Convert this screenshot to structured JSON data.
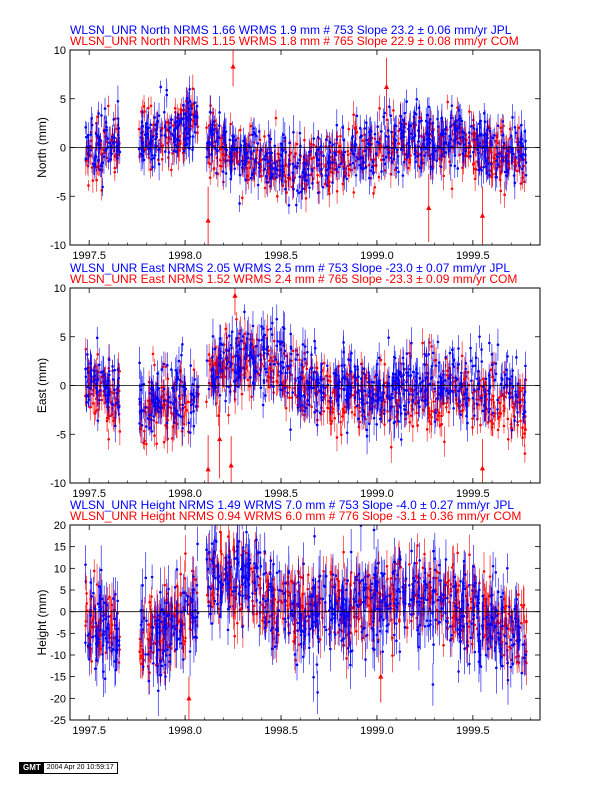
{
  "chart_data": [
    {
      "type": "scatter",
      "id": "north",
      "title_lines": [
        {
          "text": "WLSN_UNR North NRMS 1.66 WRMS  1.9 mm # 753 Slope   23.2 ±  0.06 mm/yr JPL",
          "color": "#0000ff"
        },
        {
          "text": "WLSN_UNR North NRMS 1.15 WRMS  1.8 mm # 765 Slope   22.9 ±  0.08 mm/yr COM",
          "color": "#ff0000"
        }
      ],
      "ylabel": "North (mm)",
      "xlim": [
        1997.4,
        1999.85
      ],
      "ylim": [
        -10,
        10
      ],
      "xticks": [
        1997.5,
        1998.0,
        1998.5,
        1999.0,
        1999.5
      ],
      "xtick_labels": [
        "1997.5",
        "1998.0",
        "1998.5",
        "1999.0",
        "1999.5"
      ],
      "yticks": [
        -10,
        -5,
        0,
        5,
        10
      ],
      "ytick_labels": [
        "-10",
        "-5",
        "0",
        "5",
        "10"
      ],
      "series": [
        {
          "color": "#ff0000",
          "count": 765,
          "trend": [
            [
              1997.48,
              -0.5
            ],
            [
              1997.6,
              -0.3
            ],
            [
              1997.75,
              0.5
            ],
            [
              1997.95,
              1.5
            ],
            [
              1998.05,
              2.5
            ],
            [
              1998.15,
              0.5
            ],
            [
              1998.3,
              -1.0
            ],
            [
              1998.5,
              -2.0
            ],
            [
              1998.65,
              -2.3
            ],
            [
              1998.8,
              -1.5
            ],
            [
              1998.95,
              0.0
            ],
            [
              1999.2,
              0.6
            ],
            [
              1999.4,
              0.5
            ],
            [
              1999.6,
              -0.8
            ],
            [
              1999.78,
              -1.2
            ]
          ],
          "scatter": 1.5,
          "error": 1.0,
          "point_size": 2.5
        },
        {
          "color": "#0000ff",
          "count": 753,
          "trend": [
            [
              1997.48,
              -0.3
            ],
            [
              1997.6,
              0.0
            ],
            [
              1997.75,
              0.8
            ],
            [
              1997.95,
              1.8
            ],
            [
              1998.05,
              3.0
            ],
            [
              1998.15,
              0.8
            ],
            [
              1998.3,
              -0.8
            ],
            [
              1998.5,
              -1.8
            ],
            [
              1998.65,
              -2.0
            ],
            [
              1998.8,
              -1.0
            ],
            [
              1998.95,
              0.5
            ],
            [
              1999.2,
              1.2
            ],
            [
              1999.4,
              1.0
            ],
            [
              1999.6,
              -0.3
            ],
            [
              1999.78,
              -0.8
            ]
          ],
          "scatter": 1.6,
          "error": 1.2,
          "point_size": 2.5
        }
      ],
      "outliers": [
        {
          "x": 1998.12,
          "y": -7.5,
          "err": 3.5
        },
        {
          "x": 1998.25,
          "y": 8.3,
          "err": 2.0
        },
        {
          "x": 1999.05,
          "y": 6.2,
          "err": 3.0
        },
        {
          "x": 1999.27,
          "y": -6.2,
          "err": 3.5
        },
        {
          "x": 1999.55,
          "y": -7.0,
          "err": 3.0
        }
      ],
      "gaps": [
        [
          1997.66,
          1997.76
        ],
        [
          1998.07,
          1998.11
        ]
      ]
    },
    {
      "type": "scatter",
      "id": "east",
      "title_lines": [
        {
          "text": "WLSN_UNR East NRMS 2.05 WRMS  2.5 mm # 753 Slope  -23.0 ±  0.07 mm/yr JPL",
          "color": "#0000ff"
        },
        {
          "text": "WLSN_UNR East NRMS 1.52 WRMS  2.4 mm # 765 Slope  -23.3 ±  0.09 mm/yr COM",
          "color": "#ff0000"
        }
      ],
      "ylabel": "East (mm)",
      "xlim": [
        1997.4,
        1999.85
      ],
      "ylim": [
        -10,
        10
      ],
      "xticks": [
        1997.5,
        1998.0,
        1998.5,
        1999.0,
        1999.5
      ],
      "xtick_labels": [
        "1997.5",
        "1998.0",
        "1998.5",
        "1999.0",
        "1999.5"
      ],
      "yticks": [
        -10,
        -5,
        0,
        5,
        10
      ],
      "ytick_labels": [
        "-10",
        "-5",
        "0",
        "5",
        "10"
      ],
      "series": [
        {
          "color": "#ff0000",
          "count": 765,
          "trend": [
            [
              1997.48,
              0.3
            ],
            [
              1997.6,
              -1.0
            ],
            [
              1997.75,
              -2.5
            ],
            [
              1997.9,
              -2.0
            ],
            [
              1998.05,
              -1.0
            ],
            [
              1998.15,
              1.0
            ],
            [
              1998.3,
              2.8
            ],
            [
              1998.45,
              2.5
            ],
            [
              1998.6,
              0.0
            ],
            [
              1998.8,
              -1.0
            ],
            [
              1999.0,
              -1.5
            ],
            [
              1999.2,
              -1.0
            ],
            [
              1999.4,
              -0.8
            ],
            [
              1999.6,
              -1.3
            ],
            [
              1999.78,
              -3.0
            ]
          ],
          "scatter": 1.7,
          "error": 1.1,
          "point_size": 2.5
        },
        {
          "color": "#0000ff",
          "count": 753,
          "trend": [
            [
              1997.48,
              0.8
            ],
            [
              1997.6,
              -0.6
            ],
            [
              1997.75,
              -2.0
            ],
            [
              1997.9,
              -1.4
            ],
            [
              1998.05,
              -0.4
            ],
            [
              1998.15,
              1.6
            ],
            [
              1998.3,
              3.3
            ],
            [
              1998.45,
              3.2
            ],
            [
              1998.6,
              0.6
            ],
            [
              1998.8,
              -0.3
            ],
            [
              1999.0,
              -0.8
            ],
            [
              1999.2,
              0.0
            ],
            [
              1999.4,
              0.3
            ],
            [
              1999.6,
              1.0
            ],
            [
              1999.78,
              -1.5
            ]
          ],
          "scatter": 1.8,
          "error": 1.3,
          "point_size": 2.5
        }
      ],
      "outliers": [
        {
          "x": 1998.12,
          "y": -8.6,
          "err": 3.5
        },
        {
          "x": 1998.18,
          "y": -5.5,
          "err": 4.0
        },
        {
          "x": 1998.24,
          "y": -8.2,
          "err": 3.0
        },
        {
          "x": 1998.26,
          "y": 9.2,
          "err": 2.0
        },
        {
          "x": 1999.55,
          "y": -8.5,
          "err": 3.0
        }
      ],
      "gaps": [
        [
          1997.66,
          1997.76
        ],
        [
          1998.07,
          1998.11
        ]
      ]
    },
    {
      "type": "scatter",
      "id": "height",
      "title_lines": [
        {
          "text": "WLSN_UNR Height NRMS 1.49 WRMS  7.0 mm # 753 Slope   -4.0 ±  0.27 mm/yr JPL",
          "color": "#0000ff"
        },
        {
          "text": "WLSN_UNR Height NRMS 0.94 WRMS  6.0 mm # 776 Slope   -3.1 ±  0.36 mm/yr COM",
          "color": "#ff0000"
        }
      ],
      "ylabel": "Height (mm)",
      "xlim": [
        1997.4,
        1999.85
      ],
      "ylim": [
        -25,
        20
      ],
      "xticks": [
        1997.5,
        1998.0,
        1998.5,
        1999.0,
        1999.5
      ],
      "xtick_labels": [
        "1997.5",
        "1998.0",
        "1998.5",
        "1999.0",
        "1999.5"
      ],
      "yticks": [
        -25,
        -20,
        -15,
        -10,
        -5,
        0,
        5,
        10,
        15,
        20
      ],
      "ytick_labels": [
        "-25",
        "-20",
        "-15",
        "-10",
        "-5",
        "0",
        "5",
        "10",
        "15",
        "20"
      ],
      "series": [
        {
          "color": "#ff0000",
          "count": 776,
          "trend": [
            [
              1997.48,
              -1.0
            ],
            [
              1997.6,
              -3.0
            ],
            [
              1997.75,
              -5.0
            ],
            [
              1997.9,
              -4.0
            ],
            [
              1998.05,
              2.0
            ],
            [
              1998.2,
              7.0
            ],
            [
              1998.35,
              7.0
            ],
            [
              1998.5,
              1.0
            ],
            [
              1998.7,
              1.0
            ],
            [
              1998.9,
              2.0
            ],
            [
              1999.1,
              4.0
            ],
            [
              1999.3,
              3.0
            ],
            [
              1999.5,
              0.0
            ],
            [
              1999.65,
              -3.0
            ],
            [
              1999.78,
              -5.0
            ]
          ],
          "scatter": 4.5,
          "error": 3.5,
          "point_size": 2.5
        },
        {
          "color": "#0000ff",
          "count": 753,
          "trend": [
            [
              1997.48,
              -2.0
            ],
            [
              1997.6,
              -4.0
            ],
            [
              1997.75,
              -6.0
            ],
            [
              1997.9,
              -5.0
            ],
            [
              1998.05,
              2.0
            ],
            [
              1998.2,
              8.0
            ],
            [
              1998.35,
              8.0
            ],
            [
              1998.5,
              0.5
            ],
            [
              1998.7,
              0.0
            ],
            [
              1998.9,
              1.5
            ],
            [
              1999.1,
              4.5
            ],
            [
              1999.3,
              3.5
            ],
            [
              1999.5,
              0.0
            ],
            [
              1999.65,
              -4.0
            ],
            [
              1999.78,
              -6.0
            ]
          ],
          "scatter": 5.5,
          "error": 4.0,
          "point_size": 2.5
        }
      ],
      "outliers": [
        {
          "x": 1999.02,
          "y": -15.0,
          "err": 6.0
        },
        {
          "x": 1998.02,
          "y": -20.0,
          "err": 5.0
        }
      ],
      "gaps": [
        [
          1997.66,
          1997.76
        ],
        [
          1998.07,
          1998.11
        ]
      ]
    }
  ],
  "stamp": {
    "logo": "GMT",
    "timestamp": "2004 Apr 20 10:59:17"
  }
}
